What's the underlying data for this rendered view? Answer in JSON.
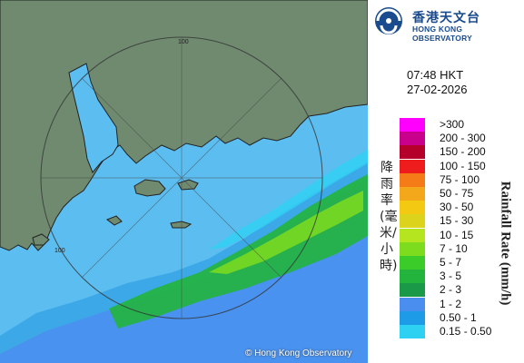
{
  "logo": {
    "cn": "香港天文台",
    "en": "HONG KONG OBSERVATORY"
  },
  "time": "07:48 HKT",
  "date": "27-02-2026",
  "legend_title_cn": "降雨率(毫米/小時)",
  "legend_title_en": "Rainfall Rate (mm/h)",
  "legend": [
    {
      "label": ">300",
      "color": "#ff00ff"
    },
    {
      "label": "200 - 300",
      "color": "#c8008c"
    },
    {
      "label": "150 - 200",
      "color": "#b4002a"
    },
    {
      "label": "100 - 150",
      "color": "#ee1c1c"
    },
    {
      "label": "75 - 100",
      "color": "#f57a18"
    },
    {
      "label": "50 - 75",
      "color": "#f3a71a"
    },
    {
      "label": "30 - 50",
      "color": "#f4c912"
    },
    {
      "label": "15 - 30",
      "color": "#dcd41c"
    },
    {
      "label": "10 - 15",
      "color": "#b4e51e"
    },
    {
      "label": "7 - 10",
      "color": "#7edc1e"
    },
    {
      "label": "5 - 7",
      "color": "#3ccc2a"
    },
    {
      "label": "3 - 5",
      "color": "#22b43c"
    },
    {
      "label": "2 - 3",
      "color": "#1a9a48"
    },
    {
      "label": "1 - 2",
      "color": "#4a8ff0"
    },
    {
      "label": "0.50 - 1",
      "color": "#1e9be6"
    },
    {
      "label": "0.15 - 0.50",
      "color": "#2fd1f2"
    }
  ],
  "range_labels": [
    "100",
    "100"
  ],
  "copyright": "© Hong Kong Observatory"
}
